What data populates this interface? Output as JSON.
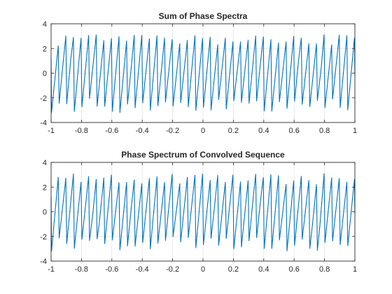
{
  "colors": {
    "series": "#0072bd",
    "axes": "#262626",
    "grid": "#d9d9d9",
    "background": "#ffffff"
  },
  "chart_data": [
    {
      "type": "line",
      "title": "Sum of Phase Spectra",
      "xlabel": "",
      "ylabel": "",
      "xlim": [
        -1,
        1
      ],
      "ylim": [
        -4,
        4
      ],
      "grid": true,
      "xticks": [
        -1,
        -0.8,
        -0.6,
        -0.4,
        -0.2,
        0,
        0.2,
        0.4,
        0.6,
        0.8,
        1
      ],
      "xtick_labels": [
        "-1",
        "-0.8",
        "-0.6",
        "-0.4",
        "-0.2",
        "0",
        "0.2",
        "0.4",
        "0.6",
        "0.8",
        "1"
      ],
      "yticks": [
        -4,
        -2,
        0,
        2,
        4
      ],
      "ytick_labels": [
        "-4",
        "-2",
        "0",
        "2",
        "4"
      ],
      "series": [
        {
          "style": "phase sawtooth",
          "cycles": 40,
          "peak_min": 2.2,
          "peak_max": 3.1,
          "trough_min": -3.2,
          "trough_max": -2.0
        }
      ]
    },
    {
      "type": "line",
      "title": "Phase Spectrum of Convolved Sequence",
      "xlabel": "",
      "ylabel": "",
      "xlim": [
        -1,
        1
      ],
      "ylim": [
        -4,
        4
      ],
      "grid": true,
      "xticks": [
        -1,
        -0.8,
        -0.6,
        -0.4,
        -0.2,
        0,
        0.2,
        0.4,
        0.6,
        0.8,
        1
      ],
      "xtick_labels": [
        "-1",
        "-0.8",
        "-0.6",
        "-0.4",
        "-0.2",
        "0",
        "0.2",
        "0.4",
        "0.6",
        "0.8",
        "1"
      ],
      "yticks": [
        -4,
        -2,
        0,
        2,
        4
      ],
      "ytick_labels": [
        "-4",
        "-2",
        "0",
        "2",
        "4"
      ],
      "series": [
        {
          "style": "phase sawtooth",
          "cycles": 40,
          "peak_min": 2.2,
          "peak_max": 3.1,
          "trough_min": -3.2,
          "trough_max": -2.0
        }
      ]
    }
  ]
}
